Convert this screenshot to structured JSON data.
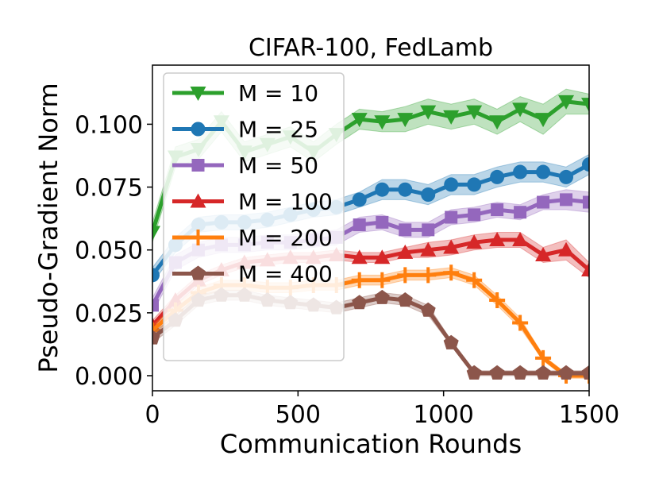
{
  "chart_data": {
    "type": "line",
    "title": "CIFAR-100, FedLamb",
    "xlabel": "Communication Rounds",
    "ylabel": "Pseudo-Gradient Norm",
    "xlim": [
      0,
      1500
    ],
    "ylim": [
      -0.006,
      0.1235
    ],
    "xticks": [
      0,
      500,
      1000,
      1500
    ],
    "xtick_labels": [
      "0",
      "500",
      "1000",
      "1500"
    ],
    "yticks": [
      0.0,
      0.025,
      0.05,
      0.075,
      0.1
    ],
    "ytick_labels": [
      "0.000",
      "0.025",
      "0.050",
      "0.075",
      "0.100"
    ],
    "grid": false,
    "legend_position": "upper-left",
    "x": [
      0,
      79,
      158,
      237,
      316,
      395,
      474,
      553,
      632,
      711,
      789,
      868,
      947,
      1026,
      1105,
      1184,
      1263,
      1342,
      1421,
      1500
    ],
    "series": [
      {
        "name": "M = 10",
        "color": "#2ca02c",
        "marker": "triangle-down",
        "values": [
          0.057,
          0.087,
          0.09,
          0.101,
          0.089,
          0.092,
          0.095,
          0.089,
          0.096,
          0.102,
          0.101,
          0.102,
          0.105,
          0.103,
          0.105,
          0.101,
          0.106,
          0.102,
          0.109,
          0.108
        ],
        "band": [
          0.004,
          0.004,
          0.004,
          0.004,
          0.004,
          0.004,
          0.004,
          0.004,
          0.004,
          0.004,
          0.004,
          0.005,
          0.005,
          0.005,
          0.005,
          0.005,
          0.005,
          0.006,
          0.005,
          0.004
        ]
      },
      {
        "name": "M = 25",
        "color": "#1f77b4",
        "marker": "circle",
        "values": [
          0.04,
          0.052,
          0.06,
          0.061,
          0.061,
          0.062,
          0.064,
          0.066,
          0.067,
          0.07,
          0.074,
          0.074,
          0.072,
          0.076,
          0.076,
          0.079,
          0.081,
          0.081,
          0.079,
          0.084
        ],
        "band": [
          0.003,
          0.003,
          0.003,
          0.003,
          0.003,
          0.003,
          0.003,
          0.003,
          0.003,
          0.003,
          0.004,
          0.004,
          0.004,
          0.004,
          0.004,
          0.004,
          0.004,
          0.004,
          0.004,
          0.004
        ]
      },
      {
        "name": "M = 50",
        "color": "#9467bd",
        "marker": "square",
        "values": [
          0.028,
          0.045,
          0.05,
          0.052,
          0.052,
          0.053,
          0.053,
          0.054,
          0.055,
          0.06,
          0.061,
          0.058,
          0.058,
          0.063,
          0.064,
          0.066,
          0.065,
          0.069,
          0.07,
          0.069
        ],
        "band": [
          0.003,
          0.003,
          0.003,
          0.003,
          0.003,
          0.003,
          0.003,
          0.003,
          0.003,
          0.003,
          0.003,
          0.003,
          0.003,
          0.003,
          0.003,
          0.003,
          0.003,
          0.003,
          0.004,
          0.004
        ]
      },
      {
        "name": "M = 100",
        "color": "#d62728",
        "marker": "triangle-up",
        "values": [
          0.02,
          0.03,
          0.038,
          0.042,
          0.045,
          0.046,
          0.047,
          0.047,
          0.048,
          0.047,
          0.047,
          0.049,
          0.05,
          0.051,
          0.053,
          0.054,
          0.054,
          0.048,
          0.05,
          0.042
        ],
        "band": [
          0.002,
          0.002,
          0.002,
          0.002,
          0.002,
          0.002,
          0.002,
          0.002,
          0.002,
          0.002,
          0.002,
          0.002,
          0.003,
          0.003,
          0.003,
          0.003,
          0.003,
          0.003,
          0.004,
          0.003
        ]
      },
      {
        "name": "M = 200",
        "color": "#ff7f0e",
        "marker": "plus",
        "values": [
          0.018,
          0.026,
          0.033,
          0.036,
          0.036,
          0.035,
          0.035,
          0.036,
          0.036,
          0.038,
          0.038,
          0.04,
          0.04,
          0.041,
          0.038,
          0.03,
          0.021,
          0.007,
          0.0,
          0.0
        ],
        "band": [
          0.002,
          0.002,
          0.002,
          0.002,
          0.002,
          0.002,
          0.002,
          0.002,
          0.002,
          0.002,
          0.002,
          0.002,
          0.002,
          0.002,
          0.002,
          0.002,
          0.002,
          0.001,
          0.001,
          0.001
        ]
      },
      {
        "name": "M = 400",
        "color": "#8c564b",
        "marker": "pentagon",
        "values": [
          0.015,
          0.022,
          0.03,
          0.032,
          0.032,
          0.03,
          0.029,
          0.028,
          0.027,
          0.029,
          0.031,
          0.03,
          0.026,
          0.013,
          0.001,
          0.001,
          0.001,
          0.001,
          0.001,
          0.001
        ],
        "band": [
          0.002,
          0.002,
          0.002,
          0.002,
          0.002,
          0.002,
          0.002,
          0.002,
          0.002,
          0.002,
          0.002,
          0.002,
          0.002,
          0.001,
          0.001,
          0.001,
          0.001,
          0.001,
          0.001,
          0.001
        ]
      }
    ]
  }
}
